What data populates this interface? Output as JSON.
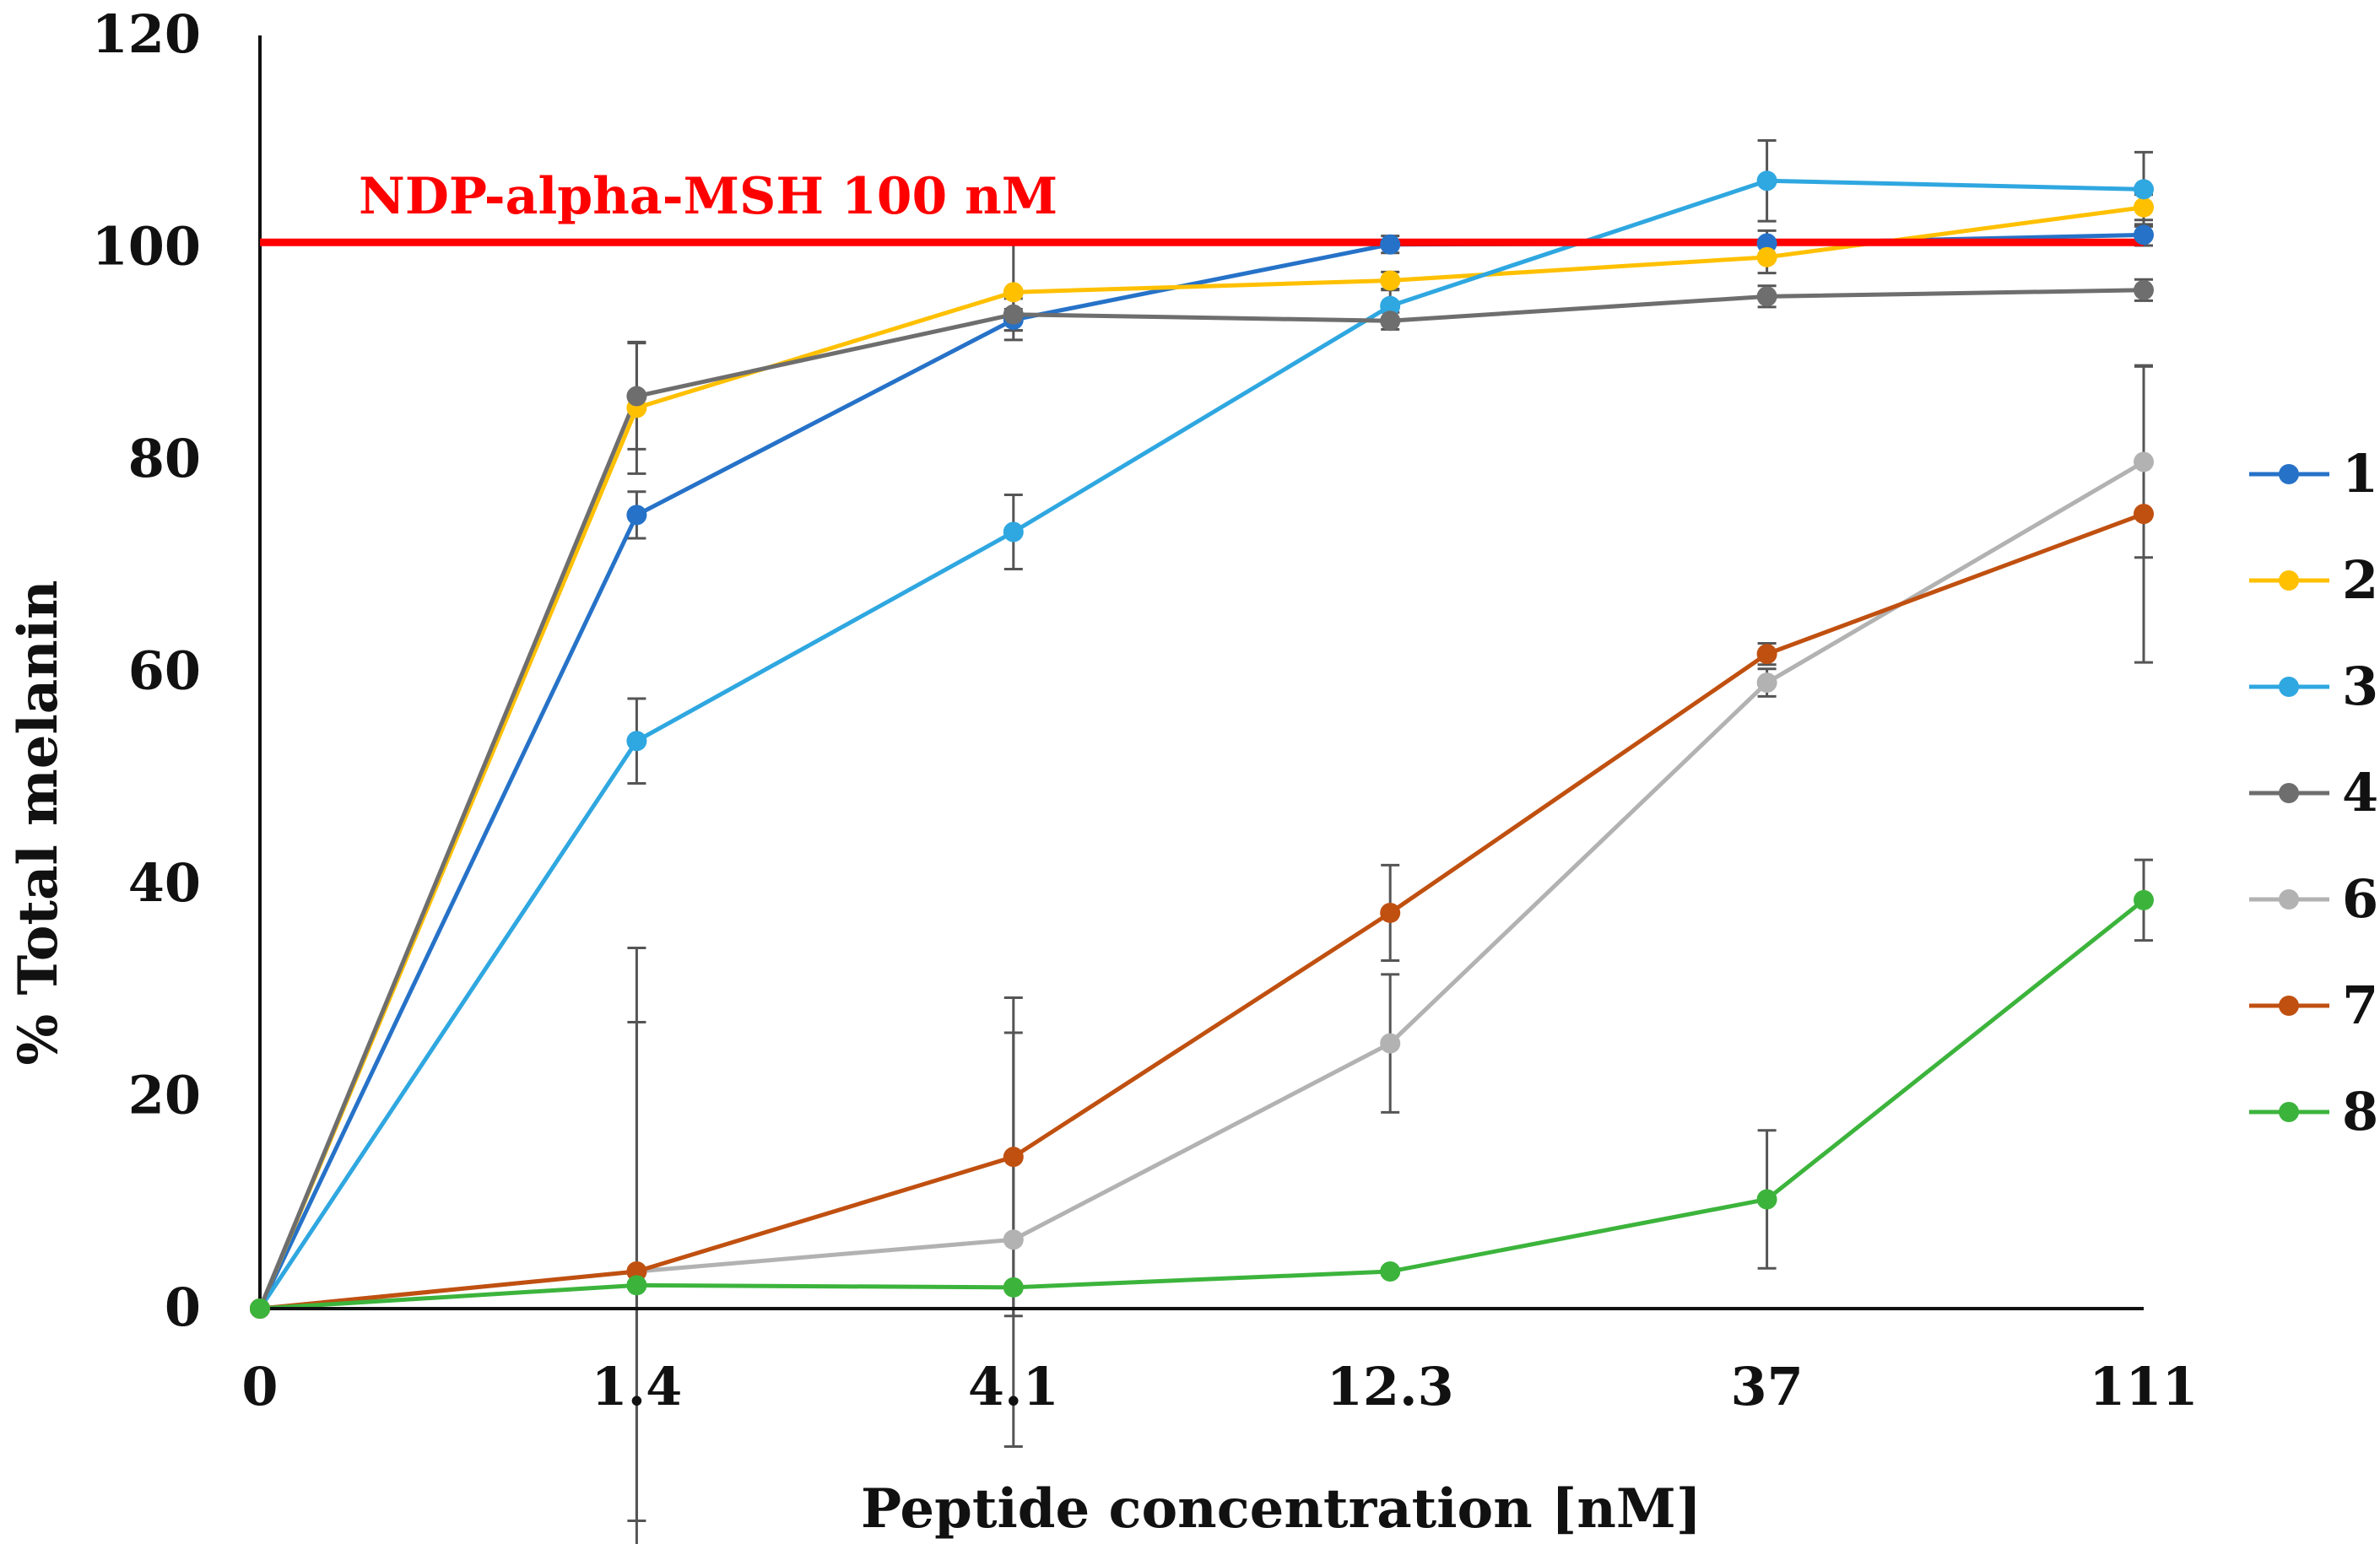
{
  "chart_data": {
    "type": "line",
    "title": "",
    "xlabel": "Peptide concentration [nM]",
    "ylabel": "% Total melanin",
    "categories": [
      "0",
      "1.4",
      "4.1",
      "12.3",
      "37",
      "111"
    ],
    "ylim": [
      0,
      120
    ],
    "yticks": [
      "0",
      "20",
      "40",
      "60",
      "80",
      "100",
      "120"
    ],
    "grid": false,
    "legend_position": "right",
    "reference_line": {
      "label": "NDP-alpha-MSH 100 nM",
      "value": 100.5,
      "color": "#ff0000"
    },
    "series": [
      {
        "name": "1",
        "color": "#2672c8",
        "values": [
          0,
          74.8,
          93.2,
          100.3,
          100.4,
          101.2
        ],
        "errors": [
          0,
          2.2,
          1.0,
          0.8,
          1.2,
          1.0
        ]
      },
      {
        "name": "2",
        "color": "#ffc000",
        "values": [
          0,
          84.9,
          95.8,
          96.9,
          99.1,
          103.8
        ],
        "errors": [
          0,
          6.2,
          4.5,
          0.8,
          1.5,
          1.2
        ]
      },
      {
        "name": "3",
        "color": "#2fa7e0",
        "values": [
          0,
          53.5,
          73.2,
          94.5,
          106.3,
          105.5
        ],
        "errors": [
          0,
          4.0,
          3.5,
          1.5,
          3.8,
          3.5
        ]
      },
      {
        "name": "4",
        "color": "#6e6e6e",
        "values": [
          0,
          86.0,
          93.7,
          93.1,
          95.4,
          96.0
        ],
        "errors": [
          0,
          5.0,
          1.5,
          0.8,
          1.0,
          1.0
        ]
      },
      {
        "name": "6",
        "color": "#b2b2b2",
        "values": [
          0,
          3.5,
          6.5,
          25.0,
          59.0,
          79.8
        ],
        "errors": [
          0,
          23.5,
          19.5,
          6.5,
          1.3,
          9.0
        ]
      },
      {
        "name": "7",
        "color": "#c05010",
        "values": [
          0,
          3.5,
          14.3,
          37.3,
          61.7,
          74.9
        ],
        "errors": [
          0,
          30.5,
          15.0,
          4.5,
          1.0,
          14.0
        ]
      },
      {
        "name": "8",
        "color": "#3cb43c",
        "values": [
          0,
          2.2,
          2.0,
          3.5,
          10.3,
          38.5
        ],
        "errors": [
          0,
          0.3,
          0.3,
          0.3,
          6.5,
          3.8
        ]
      }
    ]
  }
}
